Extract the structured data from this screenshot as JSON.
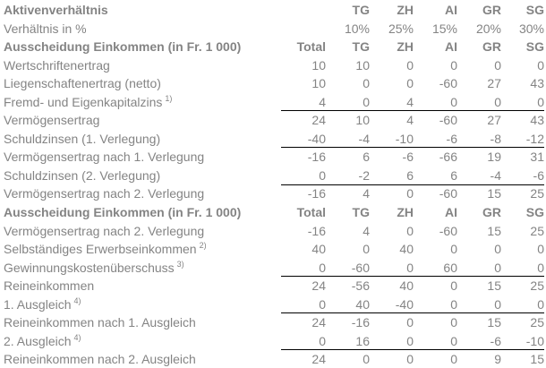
{
  "styles": {
    "text_color": "#848484",
    "rule_color": "#000000",
    "background": "#ffffff"
  },
  "table": {
    "columns": [
      "",
      "Total",
      "TG",
      "ZH",
      "AI",
      "GR",
      "SG"
    ],
    "rows": [
      {
        "type": "header",
        "label": "Aktivenverhältnis",
        "values": [
          "",
          "TG",
          "ZH",
          "AI",
          "GR",
          "SG"
        ],
        "rule": false
      },
      {
        "type": "data",
        "label": "Verhältnis in %",
        "values": [
          "",
          "10%",
          "25%",
          "15%",
          "20%",
          "30%"
        ],
        "rule": false
      },
      {
        "type": "header",
        "label": "Ausscheidung Einkommen (in Fr. 1 000)",
        "values": [
          "Total",
          "TG",
          "ZH",
          "AI",
          "GR",
          "SG"
        ],
        "rule": false
      },
      {
        "type": "data",
        "label": "Wertschriftenertrag",
        "values": [
          "10",
          "10",
          "0",
          "0",
          "0",
          "0"
        ],
        "rule": false
      },
      {
        "type": "data",
        "label": "Liegenschaftenertrag (netto)",
        "values": [
          "10",
          "0",
          "0",
          "-60",
          "27",
          "43"
        ],
        "rule": false
      },
      {
        "type": "data",
        "label": "Fremd- und Eigenkapitalzins",
        "sup": "1)",
        "values": [
          "4",
          "0",
          "4",
          "0",
          "0",
          "0"
        ],
        "rule": true
      },
      {
        "type": "data",
        "label": "Vermögensertrag",
        "values": [
          "24",
          "10",
          "4",
          "-60",
          "27",
          "43"
        ],
        "rule": false
      },
      {
        "type": "data",
        "label": "Schuldzinsen (1. Verlegung)",
        "values": [
          "-40",
          "-4",
          "-10",
          "-6",
          "-8",
          "-12"
        ],
        "rule": true
      },
      {
        "type": "data",
        "label": "Vermögensertrag nach 1. Verlegung",
        "values": [
          "-16",
          "6",
          "-6",
          "-66",
          "19",
          "31"
        ],
        "rule": false
      },
      {
        "type": "data",
        "label": "Schuldzinsen (2. Verlegung)",
        "values": [
          "0",
          "-2",
          "6",
          "6",
          "-4",
          "-6"
        ],
        "rule": true
      },
      {
        "type": "data",
        "label": "Vermögensertrag nach 2. Verlegung",
        "values": [
          "-16",
          "4",
          "0",
          "-60",
          "15",
          "25"
        ],
        "rule": false
      },
      {
        "type": "header",
        "label": "Ausscheidung Einkommen (in Fr. 1 000)",
        "values": [
          "Total",
          "TG",
          "ZH",
          "AI",
          "GR",
          "SG"
        ],
        "rule": false
      },
      {
        "type": "data",
        "label": "Vermögensertrag nach 2. Verlegung",
        "values": [
          "-16",
          "4",
          "0",
          "-60",
          "15",
          "25"
        ],
        "rule": false
      },
      {
        "type": "data",
        "label": "Selbständiges Erwerbseinkommen",
        "sup": "2)",
        "values": [
          "40",
          "0",
          "40",
          "0",
          "0",
          "0"
        ],
        "rule": false
      },
      {
        "type": "data",
        "label": "Gewinnungskostenüberschuss",
        "sup": "3)",
        "values": [
          "0",
          "-60",
          "0",
          "60",
          "0",
          "0"
        ],
        "rule": true
      },
      {
        "type": "data",
        "label": "Reineinkommen",
        "values": [
          "24",
          "-56",
          "40",
          "0",
          "15",
          "25"
        ],
        "rule": false
      },
      {
        "type": "data",
        "label": "1. Ausgleich",
        "sup": "4)",
        "values": [
          "0",
          "40",
          "-40",
          "0",
          "0",
          "0"
        ],
        "rule": true
      },
      {
        "type": "data",
        "label": "Reineinkommen nach 1. Ausgleich",
        "values": [
          "24",
          "-16",
          "0",
          "0",
          "15",
          "25"
        ],
        "rule": false
      },
      {
        "type": "data",
        "label": "2. Ausgleich",
        "sup": "4)",
        "values": [
          "0",
          "16",
          "0",
          "0",
          "-6",
          "-10"
        ],
        "rule": true
      },
      {
        "type": "data",
        "label": "Reineinkommen nach 2. Ausgleich",
        "values": [
          "24",
          "0",
          "0",
          "0",
          "9",
          "15"
        ],
        "rule": false
      }
    ]
  }
}
